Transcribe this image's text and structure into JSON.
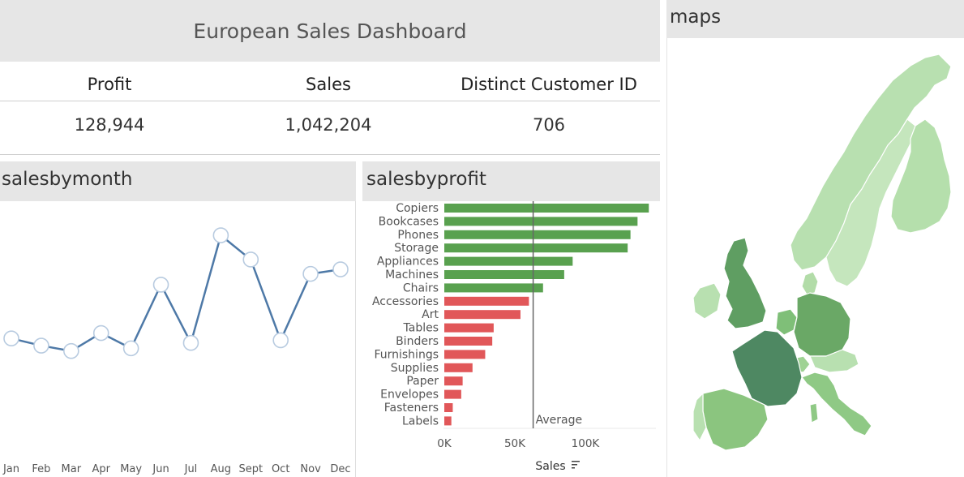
{
  "dashboard": {
    "title": "European Sales Dashboard"
  },
  "kpis": [
    {
      "label": "Profit",
      "value": "128,944"
    },
    {
      "label": "Sales",
      "value": "1,042,204"
    },
    {
      "label": "Distinct Customer ID",
      "value": "706"
    }
  ],
  "sections": {
    "sales_by_month": "salesbymonth",
    "sales_by_profit": "salesbyprofit",
    "maps": "maps"
  },
  "colors": {
    "line": "#4e79a7",
    "positive_bar": "#59a14f",
    "negative_bar": "#e15759",
    "header_band": "#e6e6e6"
  },
  "chart_data": [
    {
      "type": "line",
      "categories": [
        "Jan",
        "Feb",
        "Mar",
        "Apr",
        "May",
        "Jun",
        "Jul",
        "Aug",
        "Sept",
        "Oct",
        "Nov",
        "Dec"
      ],
      "values": [
        55,
        47,
        41,
        61,
        44,
        115,
        50,
        170,
        143,
        53,
        127,
        132
      ],
      "ylim": [
        0,
        190
      ],
      "markers": "circle"
    },
    {
      "type": "bar",
      "orientation": "horizontal",
      "categories": [
        "Copiers",
        "Bookcases",
        "Phones",
        "Storage",
        "Appliances",
        "Machines",
        "Chairs",
        "Accessories",
        "Art",
        "Tables",
        "Binders",
        "Furnishings",
        "Supplies",
        "Paper",
        "Envelopes",
        "Fasteners",
        "Labels"
      ],
      "values": [
        145000,
        137000,
        132000,
        130000,
        91000,
        85000,
        70000,
        60000,
        54000,
        35000,
        34000,
        29000,
        20000,
        13000,
        12000,
        6000,
        5000
      ],
      "positive": [
        true,
        true,
        true,
        true,
        true,
        true,
        true,
        false,
        false,
        false,
        false,
        false,
        false,
        false,
        false,
        false,
        false
      ],
      "xlim": [
        0,
        146000
      ],
      "xticks": [
        "0K",
        "50K",
        "100K"
      ],
      "xtick_values": [
        0,
        50000,
        100000
      ],
      "reference_line": {
        "label": "Average",
        "value": 63000
      },
      "xlabel": "Sales"
    }
  ]
}
